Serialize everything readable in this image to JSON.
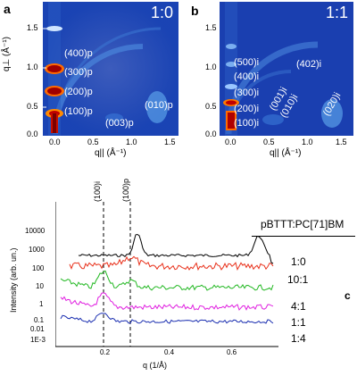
{
  "panel_a": {
    "letter": "a",
    "ratio": "1:0",
    "y_ticks": [
      "1.5",
      "1.0",
      "0.5",
      "0.0"
    ],
    "x_ticks": [
      "0.0",
      "0.5",
      "1.0",
      "1.5"
    ],
    "y_label": "q⊥ (Å⁻¹)",
    "x_label": "q|| (Å⁻¹)",
    "peaks": [
      "(400)p",
      "(300)p",
      "(200)p",
      "(100)p",
      "(010)p",
      "(003)p"
    ]
  },
  "panel_b": {
    "letter": "b",
    "ratio": "1:1",
    "y_ticks": [
      "1.5",
      "1.0",
      "0.5",
      "0.0"
    ],
    "x_ticks": [
      "0.0",
      "0.5",
      "1.0",
      "1.5"
    ],
    "x_label": "q|| (Å⁻¹)",
    "peaks": [
      "(500)i",
      "(402)i",
      "(400)i",
      "(300)i",
      "(200)i",
      "(100)i",
      "(001)i",
      "(010)i",
      "(020)i"
    ]
  },
  "panel_c": {
    "letter": "c",
    "legend_title": "pBTTT:PC[71]BM",
    "ratios": [
      "1:0",
      "10:1",
      "4:1",
      "1:1",
      "1:4"
    ],
    "y_label": "Intensity (arb. un.)",
    "x_label": "q (1/Å)",
    "y_ticks": [
      "10000",
      "1000",
      "100",
      "10",
      "1",
      "0.1",
      "0.01",
      "1E-3"
    ],
    "x_ticks": [
      "0.2",
      "0.4",
      "0.6"
    ],
    "marker_labels": [
      "(100)i",
      "(100)p"
    ],
    "colors": {
      "1:0": "#000000",
      "10:1": "#e8301a",
      "4:1": "#22b822",
      "1:1": "#e020e0",
      "1:4": "#1a2eb0"
    }
  }
}
